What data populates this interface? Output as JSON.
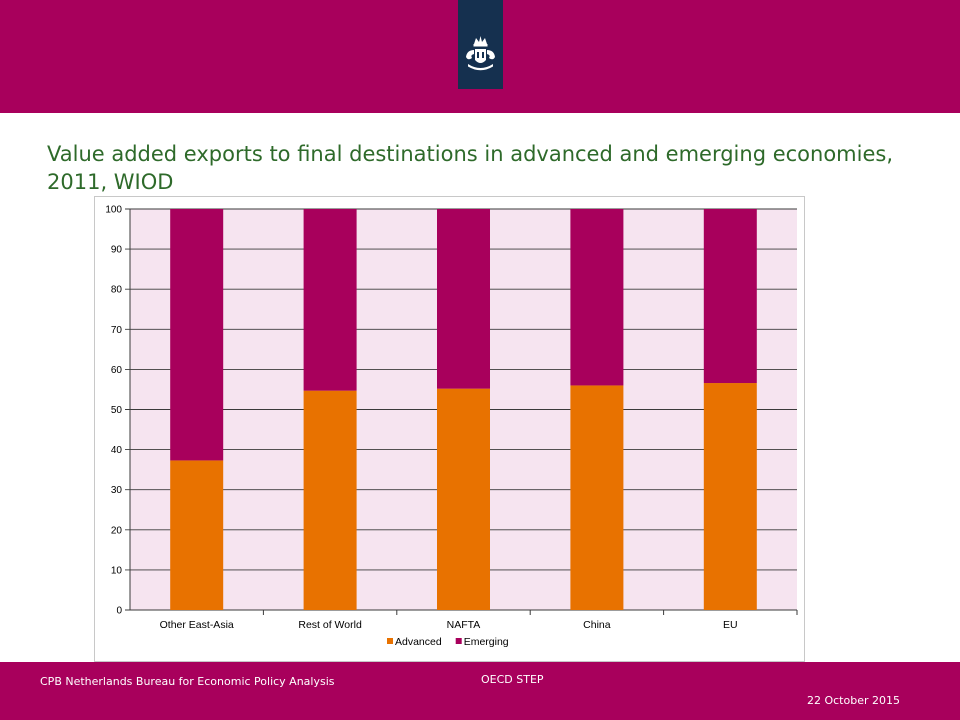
{
  "slide": {
    "title": "Value added exports to final destinations in advanced and emerging economies, 2011, WIOD"
  },
  "footer": {
    "organization": "CPB Netherlands Bureau for Economic Policy Analysis",
    "event": "OECD STEP",
    "date": "22 October 2015"
  },
  "colors": {
    "brand": "#a8005c",
    "logo_tab": "#15304f",
    "title": "#2e6a2a",
    "plot_background": "#f6e4f0",
    "advanced": "#e87200",
    "emerging": "#a8005c"
  },
  "chart_data": {
    "type": "bar",
    "stacked": true,
    "categories": [
      "Other East-Asia",
      "Rest of World",
      "NAFTA",
      "China",
      "EU"
    ],
    "series": [
      {
        "name": "Advanced",
        "values": [
          37.3,
          54.7,
          55.2,
          56.0,
          56.6
        ]
      },
      {
        "name": "Emerging",
        "values": [
          62.7,
          45.3,
          44.8,
          44.0,
          43.4
        ]
      }
    ],
    "ylim": [
      0,
      100
    ],
    "yticks": [
      0,
      10,
      20,
      30,
      40,
      50,
      60,
      70,
      80,
      90,
      100
    ],
    "grid": true,
    "legend_position": "bottom"
  }
}
